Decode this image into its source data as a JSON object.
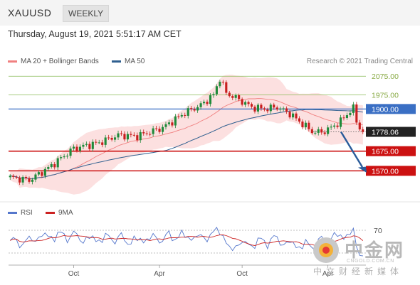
{
  "header": {
    "symbol": "XAUUSD",
    "timeframe": "WEEKLY"
  },
  "timestamp": "Thursday, August 19, 2021 5:51:17 AM CET",
  "legend": {
    "items": [
      {
        "label": "MA 20 + Bollinger Bands",
        "color": "#f08080"
      },
      {
        "label": "MA 50",
        "color": "#2f5f8f"
      }
    ],
    "credit": "Research © 2021 Trading Central"
  },
  "rsi_legend": {
    "items": [
      {
        "label": "RSI",
        "color": "#5577cc"
      },
      {
        "label": "9MA",
        "color": "#cc2222"
      }
    ]
  },
  "watermark": {
    "brand": "中金网",
    "domain": "CNGOLD.COM.CN",
    "tagline": "中文财经新媒体"
  },
  "chart_data": {
    "type": "candlestick",
    "ylim": [
      1450,
      2110
    ],
    "x_ticks": [
      {
        "index": 20,
        "label": "Oct"
      },
      {
        "index": 47,
        "label": "Apr"
      },
      {
        "index": 73,
        "label": "Oct"
      },
      {
        "index": 100,
        "label": "Apr"
      }
    ],
    "levels": [
      {
        "value": 2075.0,
        "label": "2075.00",
        "kind": "resistance",
        "color": "#88bb55"
      },
      {
        "value": 1975.0,
        "label": "1975.00",
        "kind": "resistance",
        "color": "#88bb55"
      },
      {
        "value": 1900.0,
        "label": "1900.00",
        "kind": "pivot",
        "color": "#3a6fc4"
      },
      {
        "value": 1778.06,
        "label": "1778.06",
        "kind": "last",
        "color": "#222222"
      },
      {
        "value": 1675.0,
        "label": "1675.00",
        "kind": "support",
        "color": "#cc1111"
      },
      {
        "value": 1570.0,
        "label": "1570.00",
        "kind": "support",
        "color": "#cc1111"
      }
    ],
    "rsi": {
      "ylim": [
        10,
        90
      ],
      "levels": [
        70,
        30
      ],
      "level_label": "70"
    }
  }
}
